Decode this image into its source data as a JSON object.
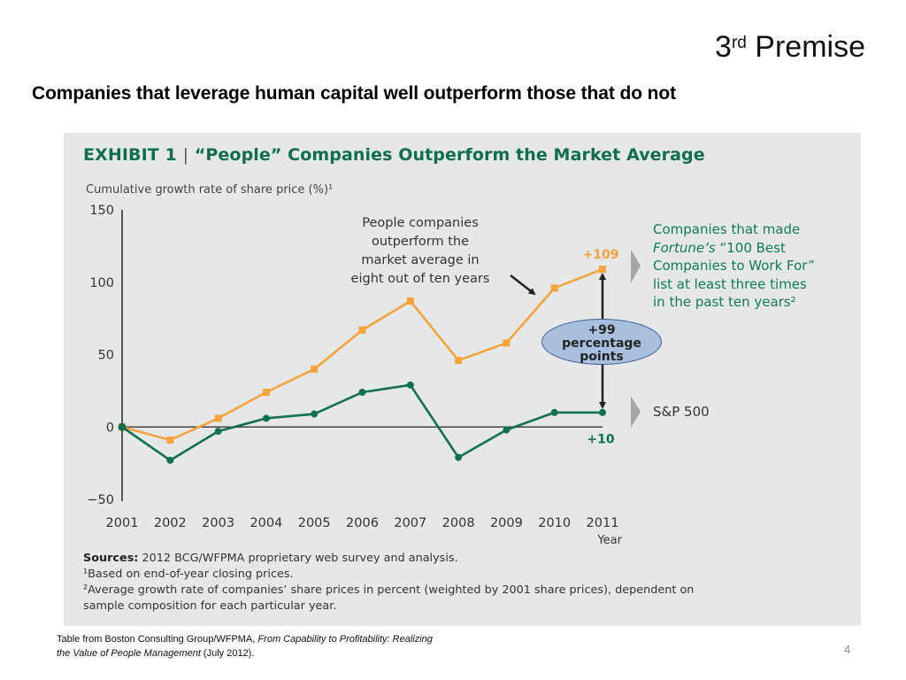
{
  "slide": {
    "title_main": "3",
    "title_sup": "rd",
    "title_rest": " Premise",
    "subtitle": "Companies that leverage human capital well outperform those that do not",
    "page_number": "4"
  },
  "colors": {
    "people_series": "#f5a33b",
    "sp500_series": "#107050",
    "title_green": "#0f6e4f",
    "callout_fill": "#a8c0de",
    "panel_bg": "#e6e7e8"
  },
  "exhibit": {
    "label_prefix": "EXHIBIT 1",
    "separator": "|",
    "label_title": "“People” Companies Outperform the Market Average"
  },
  "annotations": {
    "outperform_note": [
      "People companies",
      "outperform the",
      "market average in",
      "eight out of ten years"
    ],
    "callout_line1": "+99",
    "callout_line2": "percentage",
    "callout_line3": "points",
    "people_end_label": "+109",
    "sp_end_label": "+10"
  },
  "legend": {
    "people_line1": "Companies that made",
    "people_line2_italic": "Fortune’s",
    "people_line2_rest": " “100 Best",
    "people_line3": "Companies to Work For”",
    "people_line4": "list at least three times",
    "people_line5": "in the past ten years²",
    "sp500": "S&P 500"
  },
  "notes": {
    "sources_label": "Sources:",
    "sources_text": " 2012 BCG/WFPMA proprietary web survey and analysis.",
    "note1": "¹Based on end-of-year closing prices.",
    "note2_line1": "²Average growth rate of companies’ share prices in percent (weighted by 2001 share prices), dependent on",
    "note2_line2": "sample composition for each particular year."
  },
  "footnote": {
    "prefix": "Table from Boston Consulting Group/WFPMA, ",
    "italic1": "From Capability to Profitability: Realizing",
    "italic2": "the Value of People Management",
    "suffix": "  (July 2012)."
  },
  "chart_data": {
    "type": "line",
    "title": "“People” Companies Outperform the Market Average",
    "ylabel": "Cumulative growth rate of share price (%)¹",
    "xlabel": "Year",
    "x": [
      "2001",
      "2002",
      "2003",
      "2004",
      "2005",
      "2006",
      "2007",
      "2008",
      "2009",
      "2010",
      "2011"
    ],
    "ylim": [
      -50,
      150
    ],
    "yticks": [
      "150",
      "100",
      "50",
      "0",
      "−50"
    ],
    "ytick_values": [
      150,
      100,
      50,
      0,
      -50
    ],
    "grid": false,
    "legend_placement": "right",
    "series": [
      {
        "name": "Companies that made Fortune’s “100 Best Companies to Work For” list at least three times in the past ten years",
        "marker": "square",
        "values": [
          0,
          -9,
          6,
          24,
          40,
          67,
          87,
          46,
          58,
          96,
          109
        ]
      },
      {
        "name": "S&P 500",
        "marker": "circle",
        "values": [
          0,
          -23,
          -3,
          6,
          9,
          24,
          29,
          -21,
          -2,
          10,
          10
        ]
      }
    ]
  }
}
